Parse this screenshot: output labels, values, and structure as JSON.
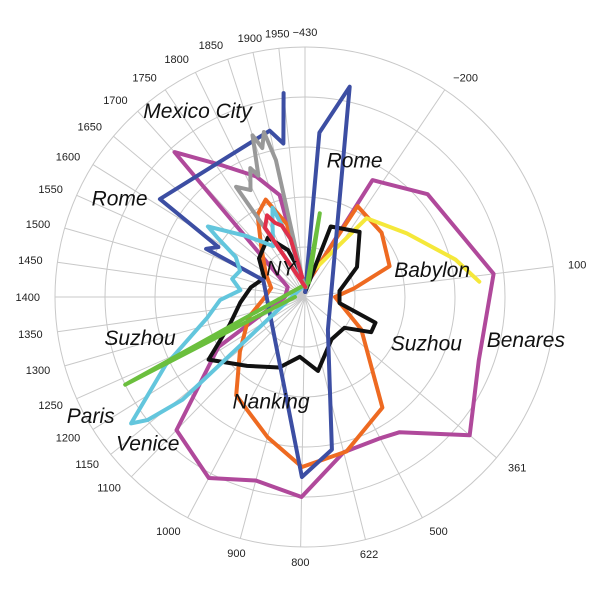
{
  "chart_data": {
    "type": "radar",
    "angular_axis": "year",
    "radial_axis": "largest city population (relative)",
    "rings": [
      1,
      2,
      3,
      4,
      5
    ],
    "r_max": 5,
    "tick_labels": [
      {
        "label": "−430",
        "angle": 0
      },
      {
        "label": "−200",
        "angle": 34
      },
      {
        "label": "100",
        "angle": 83
      },
      {
        "label": "361",
        "angle": 130
      },
      {
        "label": "500",
        "angle": 152
      },
      {
        "label": "622",
        "angle": 166
      },
      {
        "label": "800",
        "angle": 181
      },
      {
        "label": "900",
        "angle": 195
      },
      {
        "label": "1000",
        "angle": 208
      },
      {
        "label": "1100",
        "angle": 224
      },
      {
        "label": "1150",
        "angle": 231
      },
      {
        "label": "1200",
        "angle": 238
      },
      {
        "label": "1250",
        "angle": 246
      },
      {
        "label": "1300",
        "angle": 254
      },
      {
        "label": "1350",
        "angle": 262
      },
      {
        "label": "1400",
        "angle": 270
      },
      {
        "label": "1450",
        "angle": 278
      },
      {
        "label": "1500",
        "angle": 286
      },
      {
        "label": "1550",
        "angle": 294
      },
      {
        "label": "1600",
        "angle": 302
      },
      {
        "label": "1650",
        "angle": 310
      },
      {
        "label": "1700",
        "angle": 318
      },
      {
        "label": "1750",
        "angle": 326
      },
      {
        "label": "1800",
        "angle": 334
      },
      {
        "label": "1850",
        "angle": 342
      },
      {
        "label": "1900",
        "angle": 348
      },
      {
        "label": "1950",
        "angle": 354
      }
    ],
    "series": [
      {
        "name": "magenta",
        "color": "#b0499b",
        "points": [
          [
            0,
            0.2
          ],
          [
            30,
            2.7
          ],
          [
            50,
            3.2
          ],
          [
            70,
            3.4
          ],
          [
            83,
            3.8
          ],
          [
            110,
            3.7
          ],
          [
            130,
            4.3
          ],
          [
            145,
            3.3
          ],
          [
            152,
            3.2
          ],
          [
            166,
            3.2
          ],
          [
            181,
            4.0
          ],
          [
            195,
            3.8
          ],
          [
            208,
            4.1
          ],
          [
            224,
            3.7
          ],
          [
            240,
            2.0
          ],
          [
            270,
            0.4
          ],
          [
            300,
            0.4
          ],
          [
            318,
            3.9
          ],
          [
            328,
            3.1
          ],
          [
            338,
            2.6
          ],
          [
            346,
            2.1
          ],
          [
            354,
            0.3
          ]
        ]
      },
      {
        "name": "orange",
        "color": "#ee6a21",
        "points": [
          [
            10,
            0.3
          ],
          [
            30,
            2.1
          ],
          [
            50,
            2.0
          ],
          [
            70,
            1.8
          ],
          [
            80,
            1.0
          ],
          [
            90,
            0.6
          ],
          [
            120,
            1.3
          ],
          [
            145,
            2.7
          ],
          [
            165,
            3.2
          ],
          [
            181,
            3.4
          ],
          [
            195,
            2.9
          ],
          [
            215,
            2.4
          ],
          [
            230,
            1.7
          ],
          [
            250,
            1.2
          ],
          [
            270,
            0.8
          ],
          [
            285,
            0.7
          ],
          [
            300,
            0.9
          ],
          [
            318,
            1.3
          ],
          [
            330,
            1.9
          ],
          [
            338,
            2.1
          ],
          [
            346,
            1.5
          ],
          [
            354,
            0.3
          ]
        ]
      },
      {
        "name": "yellow",
        "color": "#f5e83a",
        "points": [
          [
            20,
            0.6
          ],
          [
            38,
            2.0
          ],
          [
            58,
            2.4
          ],
          [
            76,
            3.1
          ],
          [
            85,
            3.5
          ]
        ]
      },
      {
        "name": "black",
        "color": "#111111",
        "points": [
          [
            2,
            0.1
          ],
          [
            20,
            1.5
          ],
          [
            40,
            1.7
          ],
          [
            60,
            1.2
          ],
          [
            80,
            0.7
          ],
          [
            100,
            0.7
          ],
          [
            110,
            1.5
          ],
          [
            118,
            1.5
          ],
          [
            128,
            1.0
          ],
          [
            148,
            1.0
          ],
          [
            170,
            1.5
          ],
          [
            185,
            1.2
          ],
          [
            200,
            1.5
          ],
          [
            220,
            1.8
          ],
          [
            237,
            2.3
          ],
          [
            250,
            1.6
          ],
          [
            265,
            1.3
          ],
          [
            280,
            1.1
          ],
          [
            295,
            0.9
          ],
          [
            310,
            1.2
          ],
          [
            328,
            1.4
          ],
          [
            340,
            1.0
          ],
          [
            350,
            0.5
          ]
        ]
      },
      {
        "name": "dark blue",
        "color": "#3c4ea3",
        "points": [
          [
            2,
            0.1
          ],
          [
            5,
            3.3
          ],
          [
            12,
            4.3
          ],
          [
            145,
            0.8
          ],
          [
            170,
            3.1
          ],
          [
            181,
            3.6
          ],
          [
            292,
            0.9
          ],
          [
            296,
            2.2
          ],
          [
            300,
            2.0
          ],
          [
            304,
            3.5
          ],
          [
            348,
            3.4
          ],
          [
            352,
            3.1
          ],
          [
            354,
            4.1
          ]
        ]
      },
      {
        "name": "light blue",
        "color": "#63c6dd",
        "points": [
          [
            10,
            0.3
          ],
          [
            230,
            3.2
          ],
          [
            232,
            4.0
          ],
          [
            234,
            4.3
          ],
          [
            244,
            3.1
          ],
          [
            258,
            2.0
          ],
          [
            268,
            1.7
          ],
          [
            276,
            1.3
          ],
          [
            284,
            1.5
          ],
          [
            292,
            1.4
          ],
          [
            300,
            1.6
          ],
          [
            304,
            2.1
          ],
          [
            306,
            2.4
          ],
          [
            316,
            1.7
          ],
          [
            322,
            1.4
          ],
          [
            328,
            1.2
          ],
          [
            336,
            1.6
          ],
          [
            340,
            1.9
          ],
          [
            343,
            1.4
          ],
          [
            346,
            1.2
          ],
          [
            350,
            0.4
          ]
        ]
      },
      {
        "name": "green",
        "color": "#6bbf3d",
        "points": [
          [
            8,
            0.2
          ],
          [
            10,
            1.7
          ],
          [
            15,
            0.3
          ],
          [
            244,
            4.0
          ],
          [
            270,
            0.2
          ]
        ]
      },
      {
        "name": "gray",
        "color": "#999999",
        "points": [
          [
            5,
            0.2
          ],
          [
            328,
            2.6
          ],
          [
            333,
            2.4
          ],
          [
            337,
            2.8
          ],
          [
            339,
            2.6
          ],
          [
            342,
            3.4
          ],
          [
            344,
            3.1
          ],
          [
            346,
            3.4
          ],
          [
            348,
            2.8
          ],
          [
            353,
            0.3
          ]
        ]
      },
      {
        "name": "red",
        "color": "#e0304a",
        "points": [
          [
            2,
            0.2
          ],
          [
            330,
            1.6
          ],
          [
            335,
            1.8
          ],
          [
            338,
            1.6
          ],
          [
            342,
            1.5
          ],
          [
            346,
            1.2
          ],
          [
            352,
            0.4
          ]
        ]
      }
    ],
    "annotations": [
      {
        "text": "Mexico City",
        "angle": 330,
        "r": 4.3
      },
      {
        "text": "Rome",
        "angle": 20,
        "r": 2.9
      },
      {
        "text": "Rome",
        "angle": 298,
        "r": 4.2
      },
      {
        "text": "NY",
        "angle": 320,
        "r": 0.75
      },
      {
        "text": "Babylon",
        "angle": 78,
        "r": 2.6
      },
      {
        "text": "Benares",
        "angle": 101,
        "r": 4.5
      },
      {
        "text": "Suzhou",
        "angle": 111,
        "r": 2.6
      },
      {
        "text": "Suzhou",
        "angle": 256,
        "r": 3.4
      },
      {
        "text": "Paris",
        "angle": 241,
        "r": 4.9
      },
      {
        "text": "Nanking",
        "angle": 198,
        "r": 2.2
      },
      {
        "text": "Venice",
        "angle": 227,
        "r": 4.3
      }
    ]
  }
}
